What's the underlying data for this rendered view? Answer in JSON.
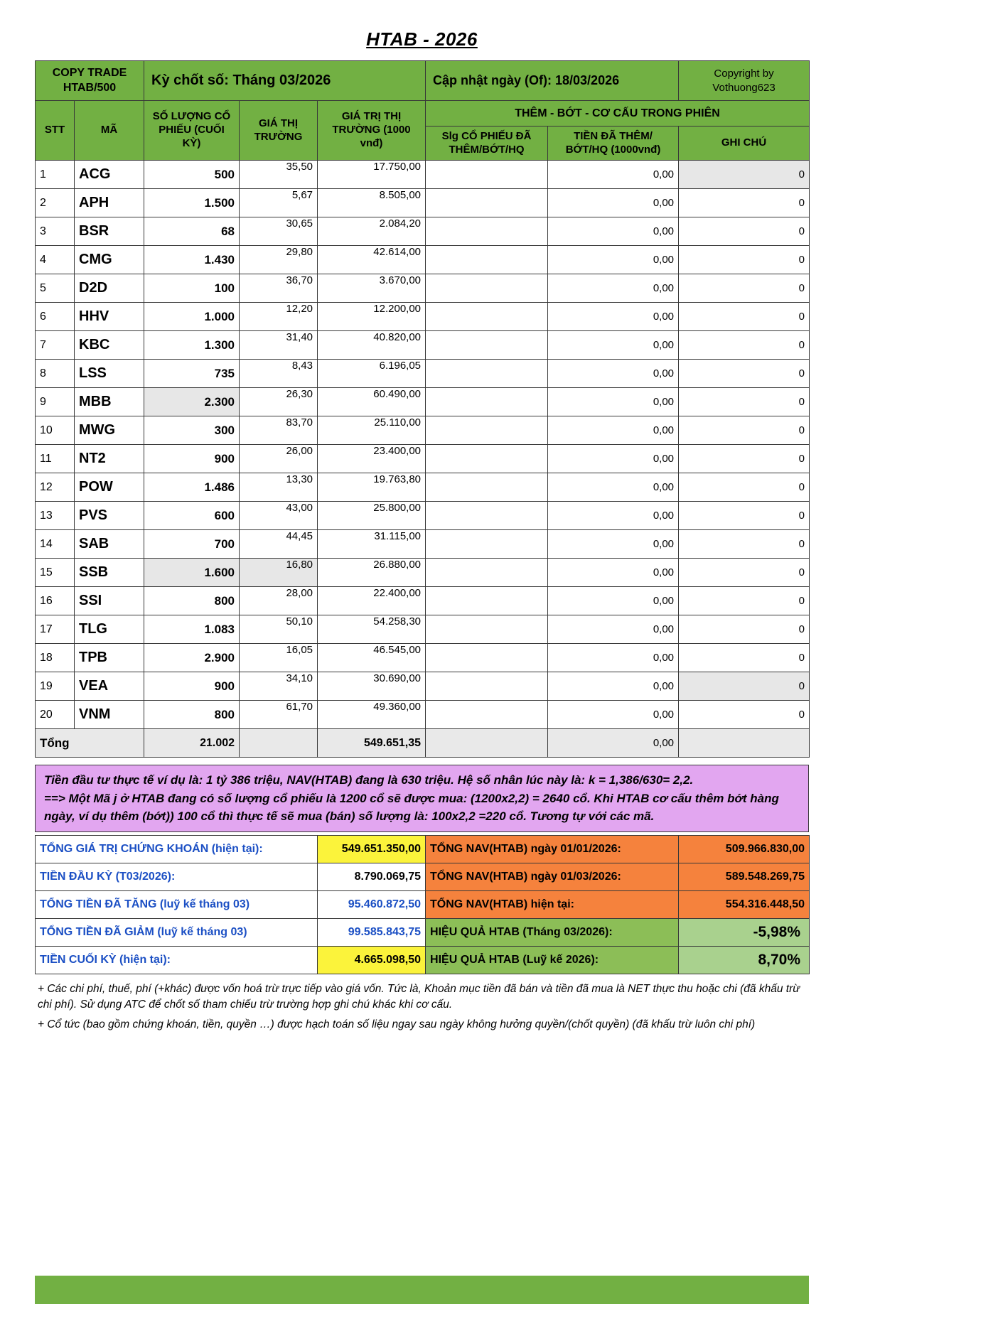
{
  "page_title": "HTAB - 2026",
  "header": {
    "copy_trade_line1": "COPY TRADE",
    "copy_trade_line2": "HTAB/500",
    "period": "Kỳ chốt số: Tháng 03/2026",
    "updated": "Cập nhật ngày (Of): 18/03/2026",
    "copyright_line1": "Copyright by",
    "copyright_line2": "Vothuong623"
  },
  "columns": {
    "stt": "STT",
    "ticker": "MÃ",
    "quantity": "SỐ LƯỢNG CỔ PHIẾU (CUỐI KỲ)",
    "price": "GIÁ THỊ TRƯỜNG",
    "market_value": "GIÁ TRỊ THỊ TRƯỜNG (1000 vnđ)",
    "group": "THÊM - BỚT - CƠ CẤU TRONG PHIÊN",
    "shares_added": "Slg CỔ PHIẾU ĐÃ THÊM/BỚT/HQ",
    "money_added": "TIỀN ĐÃ THÊM/ BỚT/HQ (1000vnđ)",
    "note": "GHI CHÚ"
  },
  "table": {
    "column_order": [
      "stt",
      "ticker",
      "quantity",
      "price",
      "market_value",
      "shares_added",
      "money_added",
      "note"
    ],
    "rows": [
      [
        "1",
        "ACG",
        "500",
        "35,50",
        "17.750,00",
        "",
        "0,00",
        "0"
      ],
      [
        "2",
        "APH",
        "1.500",
        "5,67",
        "8.505,00",
        "",
        "0,00",
        "0"
      ],
      [
        "3",
        "BSR",
        "68",
        "30,65",
        "2.084,20",
        "",
        "0,00",
        "0"
      ],
      [
        "4",
        "CMG",
        "1.430",
        "29,80",
        "42.614,00",
        "",
        "0,00",
        "0"
      ],
      [
        "5",
        "D2D",
        "100",
        "36,70",
        "3.670,00",
        "",
        "0,00",
        "0"
      ],
      [
        "6",
        "HHV",
        "1.000",
        "12,20",
        "12.200,00",
        "",
        "0,00",
        "0"
      ],
      [
        "7",
        "KBC",
        "1.300",
        "31,40",
        "40.820,00",
        "",
        "0,00",
        "0"
      ],
      [
        "8",
        "LSS",
        "735",
        "8,43",
        "6.196,05",
        "",
        "0,00",
        "0"
      ],
      [
        "9",
        "MBB",
        "2.300",
        "26,30",
        "60.490,00",
        "",
        "0,00",
        "0"
      ],
      [
        "10",
        "MWG",
        "300",
        "83,70",
        "25.110,00",
        "",
        "0,00",
        "0"
      ],
      [
        "11",
        "NT2",
        "900",
        "26,00",
        "23.400,00",
        "",
        "0,00",
        "0"
      ],
      [
        "12",
        "POW",
        "1.486",
        "13,30",
        "19.763,80",
        "",
        "0,00",
        "0"
      ],
      [
        "13",
        "PVS",
        "600",
        "43,00",
        "25.800,00",
        "",
        "0,00",
        "0"
      ],
      [
        "14",
        "SAB",
        "700",
        "44,45",
        "31.115,00",
        "",
        "0,00",
        "0"
      ],
      [
        "15",
        "SSB",
        "1.600",
        "16,80",
        "26.880,00",
        "",
        "0,00",
        "0"
      ],
      [
        "16",
        "SSI",
        "800",
        "28,00",
        "22.400,00",
        "",
        "0,00",
        "0"
      ],
      [
        "17",
        "TLG",
        "1.083",
        "50,10",
        "54.258,30",
        "",
        "0,00",
        "0"
      ],
      [
        "18",
        "TPB",
        "2.900",
        "16,05",
        "46.545,00",
        "",
        "0,00",
        "0"
      ],
      [
        "19",
        "VEA",
        "900",
        "34,10",
        "30.690,00",
        "",
        "0,00",
        "0"
      ],
      [
        "20",
        "VNM",
        "800",
        "61,70",
        "49.360,00",
        "",
        "0,00",
        "0"
      ]
    ],
    "total": {
      "label": "Tổng",
      "quantity": "21.002",
      "market_value": "549.651,35",
      "money_added": "0,00"
    }
  },
  "note_box": {
    "line1": "Tiền đầu tư thực tế ví dụ là: 1 tỷ 386 triệu, NAV(HTAB) đang là 630 triệu. Hệ số nhân lúc này là: k = 1,386/630= 2,2.",
    "line2": "==> Một Mã j ở HTAB đang có số lượng cổ phiếu là 1200 cổ sẽ được mua: (1200x2,2) = 2640 cổ. Khi HTAB cơ cấu thêm bớt hàng ngày, ví dụ thêm (bớt)) 100 cổ thì thực tế sẽ mua (bán) số lượng là: 100x2,2 =220 cổ. Tương tự với các mã."
  },
  "summary": {
    "rows": [
      {
        "left": {
          "label": "TỔNG GIÁ TRỊ CHỨNG KHOÁN (hiện tại):",
          "value": "549.651.350,00",
          "bg": "yellow",
          "color": "black"
        },
        "right": {
          "label": "TỔNG NAV(HTAB) ngày 01/01/2026:",
          "value": "509.966.830,00",
          "kind": "orange"
        }
      },
      {
        "left": {
          "label": "TIỀN ĐẦU KỲ (T03/2026):",
          "value": "8.790.069,75",
          "bg": "white",
          "color": "black"
        },
        "right": {
          "label": "TỔNG NAV(HTAB) ngày 01/03/2026:",
          "value": "589.548.269,75",
          "kind": "orange"
        }
      },
      {
        "left": {
          "label": "TỔNG TIỀN ĐÃ TĂNG (luỹ kế tháng 03)",
          "value": "95.460.872,50",
          "bg": "white",
          "color": "blue"
        },
        "right": {
          "label": "TỔNG NAV(HTAB) hiện tại:",
          "value": "554.316.448,50",
          "kind": "orange"
        }
      },
      {
        "left": {
          "label": "TỔNG TIỀN ĐÃ GIẢM (luỹ kế tháng 03)",
          "value": "99.585.843,75",
          "bg": "white",
          "color": "blue"
        },
        "right": {
          "label": "HIỆU QUẢ HTAB (Tháng 03/2026):",
          "value": "-5,98%",
          "kind": "green"
        }
      },
      {
        "left": {
          "label": "TIỀN CUỐI KỲ (hiện tại):",
          "value": "4.665.098,50",
          "bg": "yellow",
          "color": "black"
        },
        "right": {
          "label": "HIỆU QUẢ HTAB (Luỹ kế 2026):",
          "value": "8,70%",
          "kind": "green"
        }
      }
    ]
  },
  "footnotes": [
    "+ Các chi phí, thuế, phí (+khác) được vốn hoá trừ trực tiếp vào giá vốn. Tức là, Khoản mục tiền đã bán và tiền đã mua là NET thực thu hoặc chi (đã khấu trừ chi phí). Sử dụng ATC để chốt số tham chiếu trừ trường hợp ghi chú khác khi cơ cấu.",
    "+ Cổ tức (bao gồm chứng khoán, tiền, quyền …) được hạch toán số liệu ngay sau ngày không hưởng quyền/(chốt quyền) (đã khấu trừ luôn chi phí)"
  ],
  "colors": {
    "header_green": "#72B043",
    "note_purple": "#E2A6F0",
    "nav_orange": "#F5823D",
    "highlight_yellow": "#FBF33B",
    "result_green_label": "#8CBE57",
    "result_green_value": "#A9D18E",
    "label_blue": "#1B4FC4"
  }
}
